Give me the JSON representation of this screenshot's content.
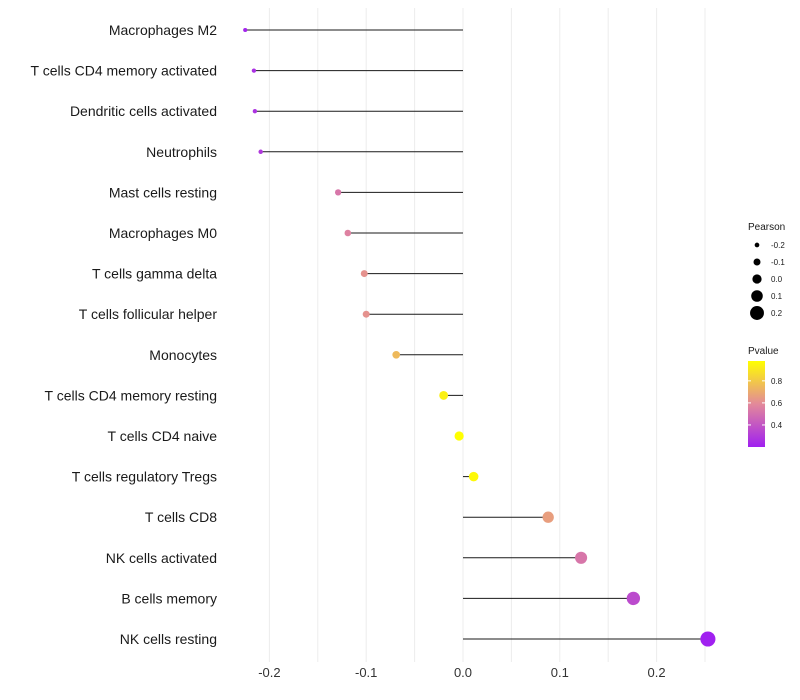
{
  "chart_data": {
    "type": "lollipop",
    "title": "",
    "xlabel": "",
    "ylabel": "",
    "xlim": [
      -0.245,
      0.26
    ],
    "x_ticks": [
      -0.2,
      -0.1,
      0.0,
      0.1,
      0.2
    ],
    "x_tick_labels": [
      "-0.2",
      "-0.1",
      "0.0",
      "0.1",
      "0.2"
    ],
    "categories": [
      "Macrophages M2",
      "T cells CD4 memory activated",
      "Dendritic cells activated",
      "Neutrophils",
      "Mast cells resting",
      "Macrophages M0",
      "T cells gamma delta",
      "T cells follicular helper",
      "Monocytes",
      "T cells CD4 memory resting",
      "T cells CD4 naive",
      "T cells regulatory  Tregs",
      "T cells CD8",
      "NK cells activated",
      "B cells memory",
      "NK cells resting"
    ],
    "pearson": [
      -0.225,
      -0.216,
      -0.215,
      -0.209,
      -0.129,
      -0.119,
      -0.102,
      -0.1,
      -0.069,
      -0.02,
      -0.004,
      0.011,
      0.088,
      0.122,
      0.176,
      0.253
    ],
    "pvalue": [
      0.22,
      0.26,
      0.27,
      0.29,
      0.52,
      0.56,
      0.62,
      0.62,
      0.75,
      0.93,
      0.98,
      0.96,
      0.66,
      0.52,
      0.36,
      0.17
    ],
    "grid": true,
    "legend_position": "right",
    "legend_size": {
      "title": "Pearson",
      "values": [
        -0.2,
        -0.1,
        0.0,
        0.1,
        0.2
      ],
      "labels": [
        "-0.2",
        "-0.1",
        "0.0",
        "0.1",
        "0.2"
      ]
    },
    "legend_color": {
      "title": "Pvalue",
      "range": [
        0.2,
        0.98
      ],
      "ticks": [
        0.4,
        0.6,
        0.8
      ],
      "labels": [
        "0.4",
        "0.6",
        "0.8"
      ],
      "low_color": "#a020f0",
      "mid_color": "#e3899a",
      "high_color": "#ffff00"
    }
  }
}
